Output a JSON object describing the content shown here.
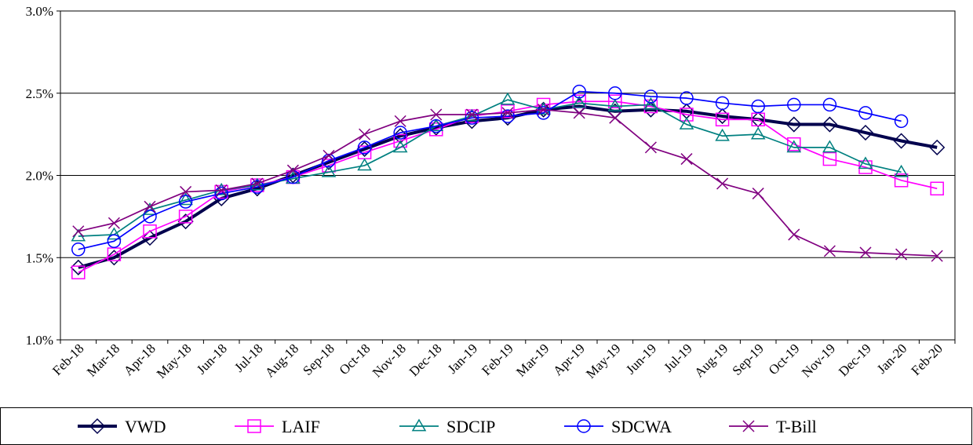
{
  "chart_data": {
    "type": "line",
    "title": "",
    "xlabel": "",
    "ylabel": "",
    "ylim": [
      1.0,
      3.0
    ],
    "yticks": [
      "1.0%",
      "1.5%",
      "2.0%",
      "2.5%",
      "3.0%"
    ],
    "ytick_values": [
      1.0,
      1.5,
      2.0,
      2.5,
      3.0
    ],
    "grid": true,
    "legend_position": "bottom",
    "categories": [
      "Feb-18",
      "Mar-18",
      "Apr-18",
      "May-18",
      "Jun-18",
      "Jul-18",
      "Aug-18",
      "Sep-18",
      "Oct-18",
      "Nov-18",
      "Dec-18",
      "Jan-19",
      "Feb-19",
      "Mar-19",
      "Apr-19",
      "May-19",
      "Jun-19",
      "Jul-19",
      "Aug-19",
      "Sep-19",
      "Oct-19",
      "Nov-19",
      "Dec-19",
      "Jan-20",
      "Feb-20"
    ],
    "series": [
      {
        "name": "VWD",
        "color": "#00004D",
        "marker": "diamond",
        "values": [
          1.44,
          1.5,
          1.62,
          1.72,
          1.86,
          1.92,
          2.0,
          2.08,
          2.16,
          2.24,
          2.29,
          2.33,
          2.35,
          2.4,
          2.42,
          2.39,
          2.4,
          2.39,
          2.36,
          2.34,
          2.31,
          2.31,
          2.26,
          2.21,
          2.17
        ]
      },
      {
        "name": "LAIF",
        "color": "#FF00FF",
        "marker": "square",
        "values": [
          1.41,
          1.52,
          1.66,
          1.75,
          1.9,
          1.94,
          1.99,
          2.06,
          2.14,
          2.21,
          2.28,
          2.36,
          2.39,
          2.43,
          2.45,
          2.45,
          2.42,
          2.37,
          2.34,
          2.34,
          2.19,
          2.1,
          2.05,
          1.97,
          1.92
        ]
      },
      {
        "name": "SDCIP",
        "color": "#008080",
        "marker": "triangle",
        "values": [
          1.63,
          1.64,
          1.79,
          1.85,
          1.91,
          1.94,
          1.98,
          2.02,
          2.06,
          2.17,
          2.3,
          2.36,
          2.46,
          2.4,
          2.44,
          2.42,
          2.43,
          2.31,
          2.24,
          2.25,
          2.17,
          2.17,
          2.07,
          2.02,
          null
        ]
      },
      {
        "name": "SDCWA",
        "color": "#0000FF",
        "marker": "circle",
        "values": [
          1.55,
          1.6,
          1.75,
          1.84,
          1.89,
          1.93,
          1.99,
          2.09,
          2.17,
          2.26,
          2.3,
          2.35,
          2.36,
          2.38,
          2.51,
          2.5,
          2.48,
          2.47,
          2.44,
          2.42,
          2.43,
          2.43,
          2.38,
          2.33,
          null
        ]
      },
      {
        "name": "T-Bill",
        "color": "#800080",
        "marker": "x",
        "values": [
          1.66,
          1.71,
          1.81,
          1.9,
          1.91,
          1.95,
          2.03,
          2.12,
          2.25,
          2.33,
          2.37,
          2.37,
          2.38,
          2.4,
          2.38,
          2.35,
          2.17,
          2.1,
          1.95,
          1.89,
          1.64,
          1.54,
          1.53,
          1.52,
          1.51
        ]
      }
    ]
  }
}
